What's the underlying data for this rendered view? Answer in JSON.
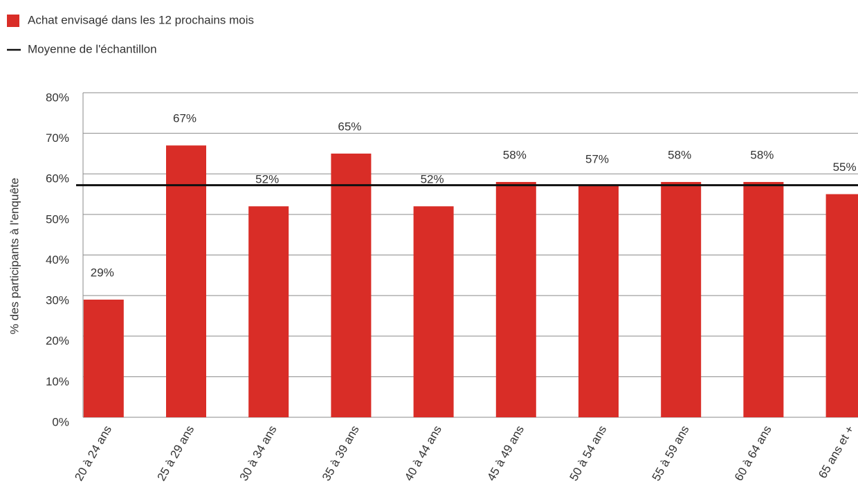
{
  "chart_data": {
    "type": "bar",
    "categories": [
      "20 à 24 ans",
      "25 à 29 ans",
      "30 à 34 ans",
      "35 à 39 ans",
      "40 à 44 ans",
      "45 à 49 ans",
      "50 à 54 ans",
      "55 à 59 ans",
      "60 à 64 ans",
      "65 ans et +"
    ],
    "series": [
      {
        "name": "Achat envisagé dans les 12 prochains mois",
        "color": "#d92d27",
        "values": [
          29,
          67,
          52,
          65,
          52,
          58,
          57,
          58,
          58,
          55
        ],
        "value_labels": [
          "29%",
          "67%",
          "52%",
          "65%",
          "52%",
          "58%",
          "57%",
          "58%",
          "58%",
          "55%"
        ]
      }
    ],
    "average": {
      "name": "Moyenne de l'échantillon",
      "value": 57.2,
      "color": "#111111"
    },
    "y_label": "% des participants à l'enquête",
    "ylim": [
      0,
      80
    ],
    "yticks": [
      {
        "value": 0,
        "label": "0%"
      },
      {
        "value": 10,
        "label": "10%"
      },
      {
        "value": 20,
        "label": "20%"
      },
      {
        "value": 30,
        "label": "30%"
      },
      {
        "value": 40,
        "label": "40%"
      },
      {
        "value": 50,
        "label": "50%"
      },
      {
        "value": 60,
        "label": "60%"
      },
      {
        "value": 70,
        "label": "70%"
      },
      {
        "value": 80,
        "label": "80%"
      }
    ],
    "grid": true
  }
}
